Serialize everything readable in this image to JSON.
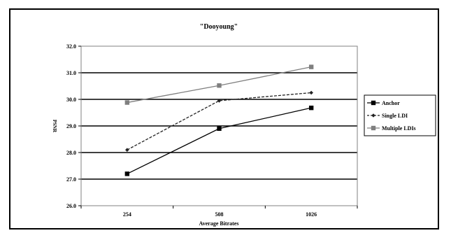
{
  "chart_data": {
    "type": "line",
    "title": "\"Dooyoung\"",
    "xlabel": "Average Bitrates",
    "ylabel": "PSNR",
    "categories": [
      "254",
      "508",
      "1026"
    ],
    "ylim": [
      26.0,
      32.0
    ],
    "yticks": [
      "26.0",
      "27.0",
      "28.0",
      "29.0",
      "30.0",
      "31.0",
      "32.0"
    ],
    "grid": true,
    "legend_position": "right",
    "series": [
      {
        "name": "Anchor",
        "values": [
          27.2,
          28.9,
          29.68
        ],
        "color": "#000000",
        "marker": "square",
        "dash": "solid"
      },
      {
        "name": "Single LDI",
        "values": [
          28.1,
          29.95,
          30.25
        ],
        "color": "#222222",
        "marker": "diamond",
        "dash": "dashed"
      },
      {
        "name": "Multiple LDIs",
        "values": [
          29.88,
          30.52,
          31.22
        ],
        "color": "#7f7f7f",
        "marker": "square",
        "dash": "solid"
      }
    ]
  }
}
